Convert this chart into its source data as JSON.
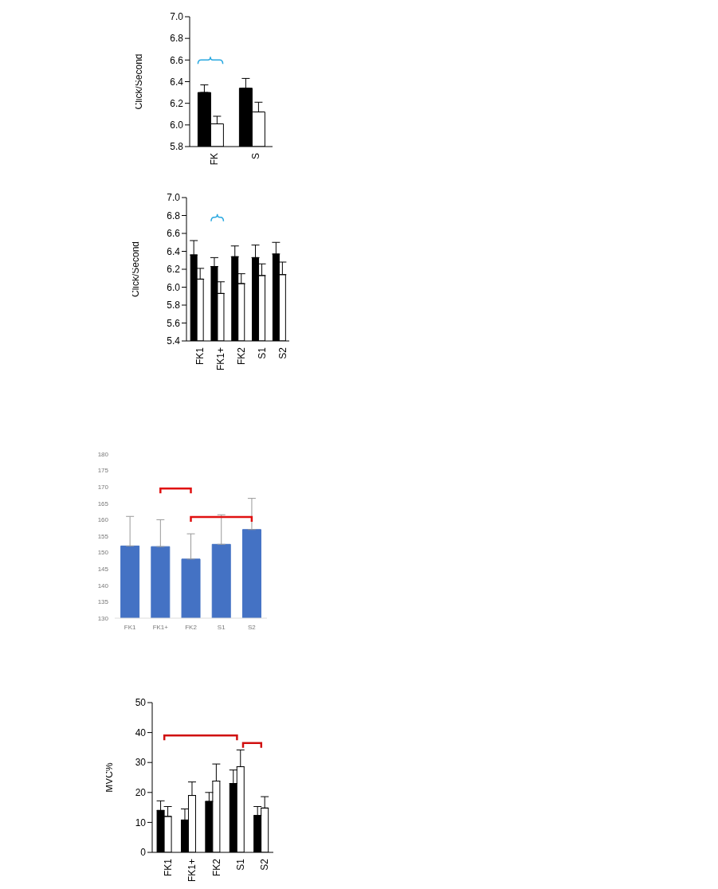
{
  "chart_data": [
    {
      "type": "bar",
      "ylabel": "Click/Second",
      "categories": [
        "FK",
        "S"
      ],
      "ylim": [
        5.8,
        7.0
      ],
      "yticks": [
        {
          "value": 5.8,
          "label": "5.8"
        },
        {
          "value": 6.0,
          "label": "6.0"
        },
        {
          "value": 6.2,
          "label": "6.2"
        },
        {
          "value": 6.4,
          "label": "6.4"
        },
        {
          "value": 6.6,
          "label": "6.6"
        },
        {
          "value": 6.8,
          "label": "6.8"
        },
        {
          "value": 7.0,
          "label": "7.0"
        }
      ],
      "series": [
        {
          "color": "#000000",
          "values": [
            6.3,
            6.34
          ],
          "errors": [
            [
              6.3,
              6.37
            ],
            [
              6.34,
              6.43
            ]
          ]
        },
        {
          "color": "#ffffff",
          "values": [
            6.01,
            6.12
          ],
          "errors": [
            [
              6.01,
              6.08
            ],
            [
              6.12,
              6.21
            ]
          ]
        }
      ]
    },
    {
      "type": "bar",
      "ylabel": "Click/Second",
      "categories": [
        "FK1",
        "FK1+",
        "FK2",
        "S1",
        "S2"
      ],
      "ylim": [
        5.4,
        7.0
      ],
      "yticks": [
        {
          "value": 5.4,
          "label": "5.4"
        },
        {
          "value": 5.6,
          "label": "5.6"
        },
        {
          "value": 5.8,
          "label": "5.8"
        },
        {
          "value": 6.0,
          "label": "6.0"
        },
        {
          "value": 6.2,
          "label": "6.2"
        },
        {
          "value": 6.4,
          "label": "6.4"
        },
        {
          "value": 6.6,
          "label": "6.6"
        },
        {
          "value": 6.8,
          "label": "6.8"
        },
        {
          "value": 7.0,
          "label": "7.0"
        }
      ],
      "series": [
        {
          "color": "#000000",
          "values": [
            6.36,
            6.23,
            6.34,
            6.33,
            6.37
          ],
          "errors": [
            [
              6.36,
              6.52
            ],
            [
              6.23,
              6.33
            ],
            [
              6.34,
              6.46
            ],
            [
              6.33,
              6.47
            ],
            [
              6.37,
              6.5
            ]
          ]
        },
        {
          "color": "#ffffff",
          "values": [
            6.09,
            5.93,
            6.04,
            6.13,
            6.14
          ],
          "errors": [
            [
              6.09,
              6.21
            ],
            [
              5.93,
              6.06
            ],
            [
              6.04,
              6.15
            ],
            [
              6.13,
              6.26
            ],
            [
              6.14,
              6.28
            ]
          ]
        }
      ]
    },
    {
      "type": "bar",
      "categories": [
        "FK1",
        "FK1+",
        "FK2",
        "S1",
        "S2"
      ],
      "ylim": [
        130,
        180
      ],
      "yticks": [
        130,
        135,
        140,
        145,
        150,
        155,
        160,
        165,
        170,
        175,
        180
      ],
      "series": [
        {
          "color": "#4472c4",
          "values": [
            152,
            151.8,
            148,
            152.5,
            157
          ],
          "errors": [
            [
              152,
              161
            ],
            [
              151.8,
              160
            ],
            [
              148,
              155.7
            ],
            [
              152.5,
              161.5
            ],
            [
              157,
              166.5
            ]
          ]
        }
      ]
    },
    {
      "type": "bar",
      "ylabel": "MVC%",
      "categories": [
        "FK1",
        "FK1+",
        "FK2",
        "S1",
        "S2"
      ],
      "ylim": [
        0,
        50
      ],
      "yticks": [
        0,
        10,
        20,
        30,
        40,
        50
      ],
      "series": [
        {
          "color": "#000000",
          "values": [
            14,
            10.8,
            17,
            23,
            12.3
          ],
          "errors": [
            [
              14,
              17.2
            ],
            [
              10.8,
              14.5
            ],
            [
              17,
              20
            ],
            [
              23,
              27.5
            ],
            [
              12.3,
              15.3
            ]
          ]
        },
        {
          "color": "#ffffff",
          "values": [
            12,
            19,
            23.8,
            28.6,
            14.8
          ],
          "errors": [
            [
              12,
              15.3
            ],
            [
              19,
              23.5
            ],
            [
              23.8,
              29.5
            ],
            [
              28.6,
              34.2
            ],
            [
              14.8,
              18.6
            ]
          ]
        }
      ]
    }
  ]
}
